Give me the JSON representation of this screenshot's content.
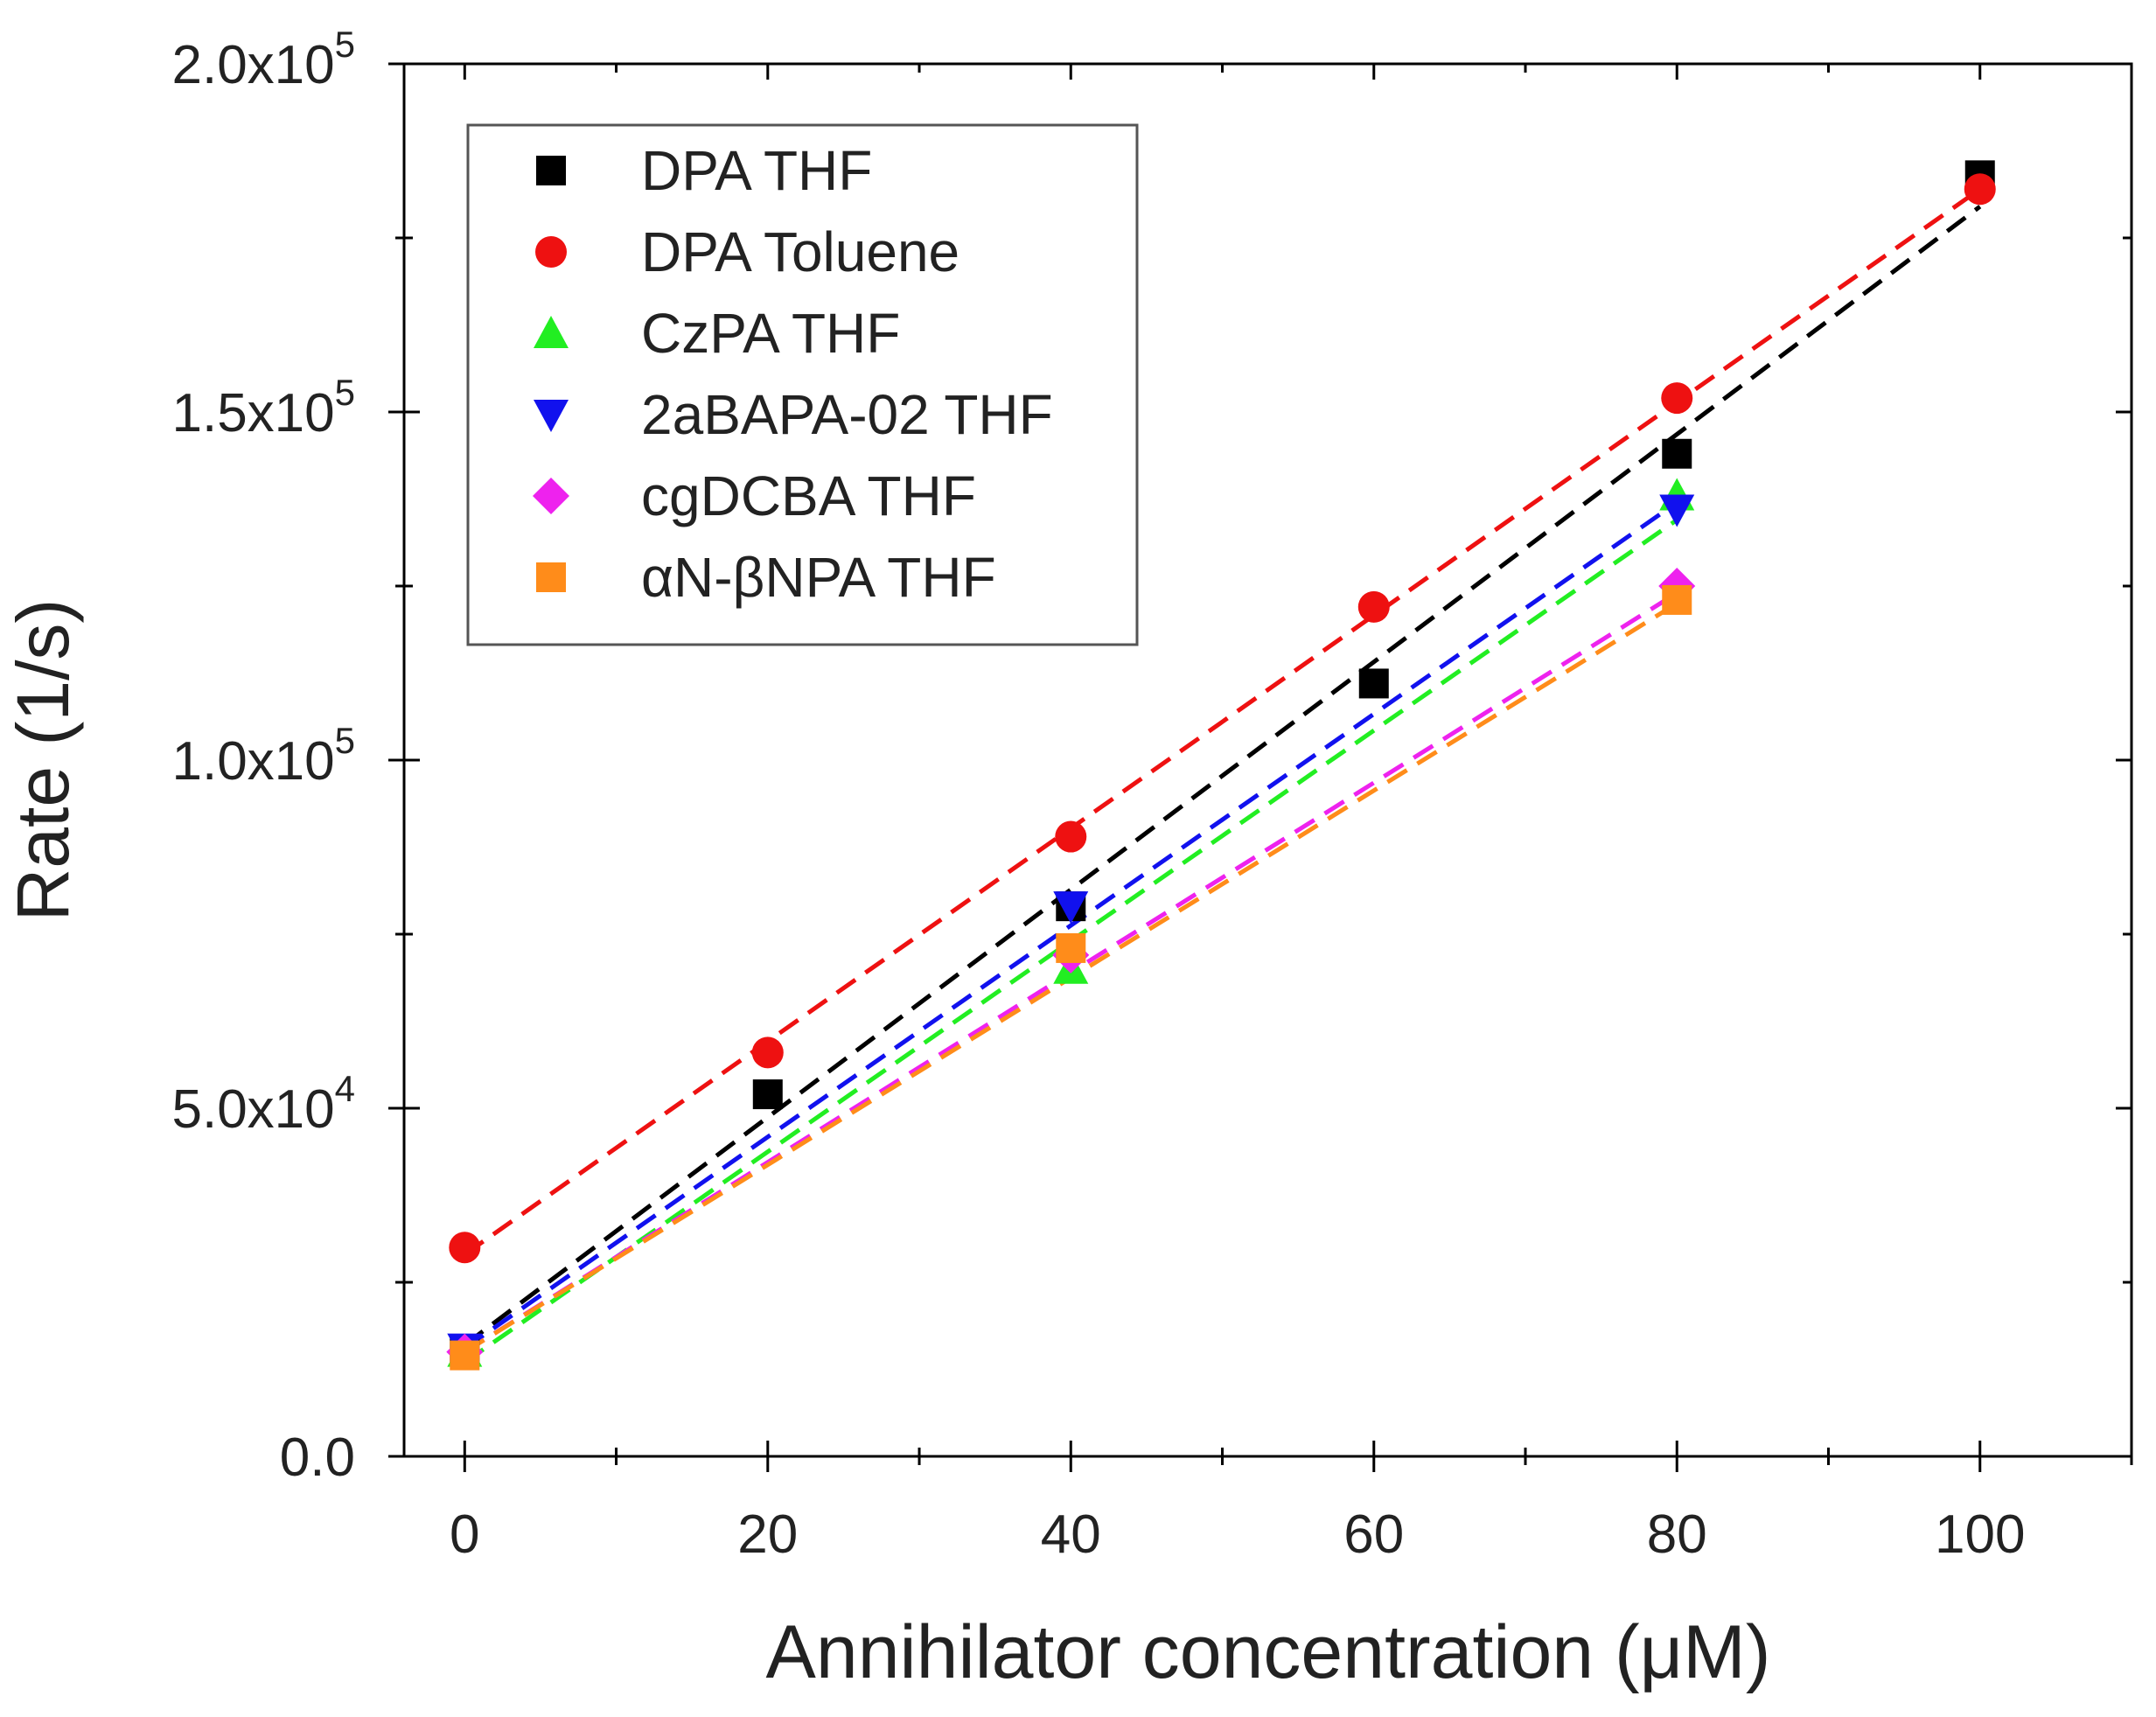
{
  "chart_data": {
    "type": "scatter",
    "title": "",
    "xlabel": "Annihilator concentration (μM)",
    "ylabel": "Rate (1/s)",
    "xlim": [
      -4,
      110
    ],
    "ylim": [
      0,
      200000
    ],
    "x_major_ticks": [
      0,
      20,
      40,
      60,
      80,
      100
    ],
    "x_minor_ticks": [
      10,
      30,
      50,
      70,
      90,
      110
    ],
    "y_major_ticks": [
      0,
      50000,
      100000,
      150000,
      200000
    ],
    "y_minor_ticks": [
      25000,
      75000,
      125000,
      175000
    ],
    "x_tick_labels": [
      "0",
      "20",
      "40",
      "60",
      "80",
      "100"
    ],
    "y_tick_labels": [
      {
        "mantissa": "0.0",
        "times": "",
        "exponent": ""
      },
      {
        "mantissa": "5.0",
        "times": "x10",
        "exponent": "4"
      },
      {
        "mantissa": "1.0",
        "times": "x10",
        "exponent": "5"
      },
      {
        "mantissa": "1.5",
        "times": "x10",
        "exponent": "5"
      },
      {
        "mantissa": "2.0",
        "times": "x10",
        "exponent": "5"
      }
    ],
    "legend_position": "top-left",
    "series": [
      {
        "name": "DPA THF",
        "marker": "square",
        "color": "#000000",
        "x": [
          0,
          20,
          40,
          60,
          80,
          100
        ],
        "y": [
          15000,
          52000,
          79000,
          111000,
          144000,
          184000
        ],
        "fit": [
          16000,
          179500
        ]
      },
      {
        "name": "DPA Toluene",
        "marker": "circle",
        "color": "#ee1111",
        "x": [
          0,
          20,
          40,
          60,
          80,
          100
        ],
        "y": [
          30000,
          58000,
          89000,
          122000,
          152000,
          182000
        ],
        "fit": [
          29000,
          182000
        ]
      },
      {
        "name": "CzPA THF",
        "marker": "triangle-up",
        "color": "#22ee22",
        "x": [
          0,
          40,
          80
        ],
        "y": [
          15000,
          70000,
          138000
        ],
        "fit": [
          13500,
          134500
        ]
      },
      {
        "name": "2aBAPA-02 THF",
        "marker": "triangle-down",
        "color": "#1111ee",
        "x": [
          0,
          40,
          80
        ],
        "y": [
          15500,
          79000,
          136000
        ],
        "fit": [
          15500,
          137000
        ]
      },
      {
        "name": "cgDCBA THF",
        "marker": "diamond",
        "color": "#ee22ee",
        "x": [
          0,
          40,
          80
        ],
        "y": [
          15000,
          72000,
          125000
        ],
        "fit": [
          15000,
          124000
        ]
      },
      {
        "name": "αN-βNPA THF",
        "marker": "square",
        "color": "#ff8c1a",
        "x": [
          0,
          40,
          80
        ],
        "y": [
          14500,
          73000,
          123000
        ],
        "fit": [
          15000,
          122500
        ]
      }
    ]
  }
}
